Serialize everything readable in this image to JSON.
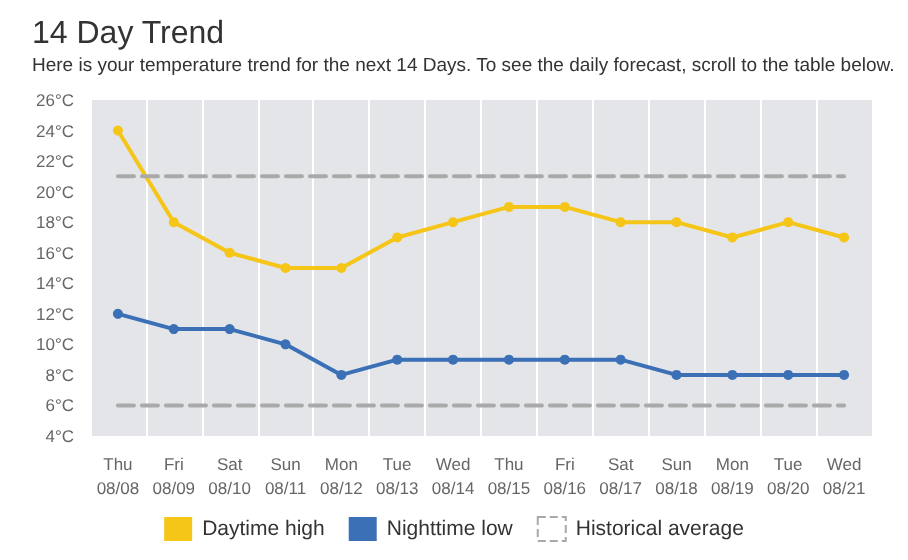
{
  "chart_data": {
    "type": "line",
    "title": "14 Day Trend",
    "subtitle": "Here is your temperature trend for the next 14 Days. To see the daily forecast, scroll to the table below.",
    "categories": [
      "Thu\n08/08",
      "Fri\n08/09",
      "Sat\n08/10",
      "Sun\n08/11",
      "Mon\n08/12",
      "Tue\n08/13",
      "Wed\n08/14",
      "Thu\n08/15",
      "Fri\n08/16",
      "Sat\n08/17",
      "Sun\n08/18",
      "Mon\n08/19",
      "Tue\n08/20",
      "Wed\n08/21"
    ],
    "series": [
      {
        "name": "Daytime high",
        "color": "#f5c518",
        "marker": "circle",
        "line_style": "solid",
        "values": [
          24,
          18,
          16,
          15,
          15,
          17,
          18,
          19,
          19,
          18,
          18,
          17,
          18,
          17
        ]
      },
      {
        "name": "Nighttime low",
        "color": "#3b6fb6",
        "marker": "circle",
        "line_style": "solid",
        "values": [
          12,
          11,
          11,
          10,
          8,
          9,
          9,
          9,
          9,
          9,
          8,
          8,
          8,
          8
        ]
      },
      {
        "name": "Historical average",
        "color": "#a9a9a9",
        "marker": "none",
        "line_style": "dashed",
        "values": [
          21,
          21,
          21,
          21,
          21,
          21,
          21,
          21,
          21,
          21,
          21,
          21,
          21,
          21
        ]
      },
      {
        "color": "#a9a9a9",
        "marker": "none",
        "line_style": "dashed",
        "values": [
          6,
          6,
          6,
          6,
          6,
          6,
          6,
          6,
          6,
          6,
          6,
          6,
          6,
          6
        ]
      }
    ],
    "ylim": [
      4,
      26
    ],
    "yticks": [
      {
        "value": 4,
        "label": "4°C"
      },
      {
        "value": 6,
        "label": "6°C"
      },
      {
        "value": 8,
        "label": "8°C"
      },
      {
        "value": 10,
        "label": "10°C"
      },
      {
        "value": 12,
        "label": "12°C"
      },
      {
        "value": 14,
        "label": "14°C"
      },
      {
        "value": 16,
        "label": "16°C"
      },
      {
        "value": 18,
        "label": "18°C"
      },
      {
        "value": 20,
        "label": "20°C"
      },
      {
        "value": 22,
        "label": "22°C"
      },
      {
        "value": 24,
        "label": "24°C"
      },
      {
        "value": 26,
        "label": "26°C"
      }
    ],
    "grid": "x",
    "legend": "bottom"
  }
}
